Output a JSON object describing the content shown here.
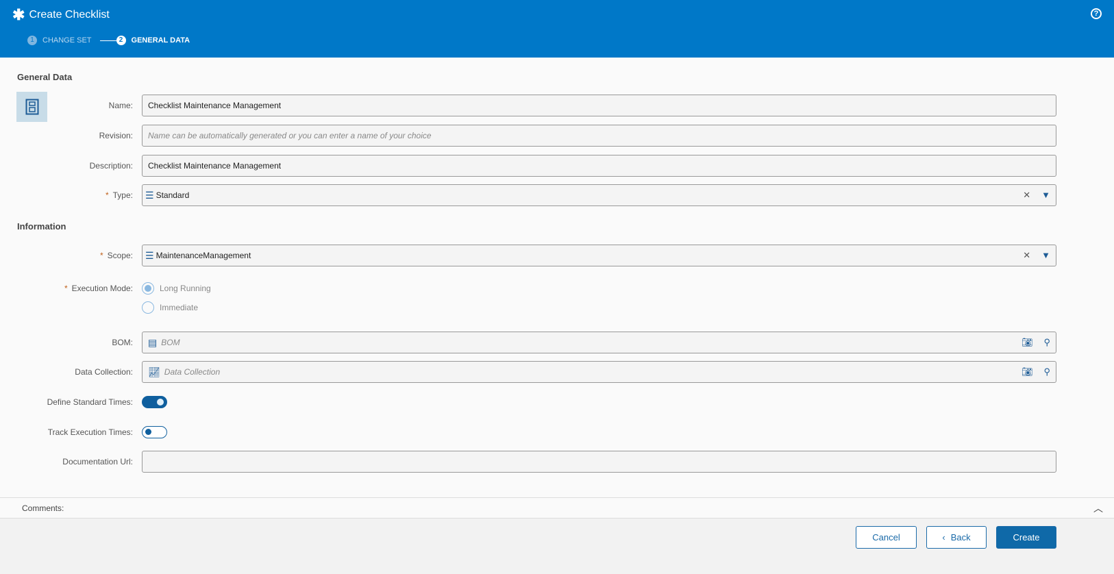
{
  "header": {
    "title": "Create Checklist",
    "logo_icon": "asterisk-icon",
    "help_icon": "help-icon",
    "steps": [
      {
        "num": "1",
        "label": "CHANGE SET"
      },
      {
        "num": "2",
        "label": "GENERAL DATA"
      }
    ]
  },
  "general": {
    "title": "General Data",
    "name": {
      "label": "Name:",
      "value": "Checklist Maintenance Management"
    },
    "revision": {
      "label": "Revision:",
      "placeholder": "Name can be automatically generated or you can enter a name of your choice"
    },
    "description": {
      "label": "Description:",
      "value": "Checklist Maintenance Management"
    },
    "type": {
      "label": "Type:",
      "value": "Standard"
    }
  },
  "information": {
    "title": "Information",
    "scope": {
      "label": "Scope:",
      "value": "MaintenanceManagement"
    },
    "execution_mode": {
      "label": "Execution Mode:",
      "options": [
        "Long Running",
        "Immediate"
      ],
      "selected": "Long Running"
    },
    "bom": {
      "label": "BOM:",
      "placeholder": "BOM"
    },
    "data_collection": {
      "label": "Data Collection:",
      "placeholder": "Data Collection"
    },
    "define_standard_times": {
      "label": "Define Standard Times:",
      "on": true
    },
    "track_execution_times": {
      "label": "Track Execution Times:",
      "on": false
    },
    "documentation_url": {
      "label": "Documentation Url:",
      "value": ""
    }
  },
  "comments": {
    "label": "Comments:"
  },
  "footer": {
    "cancel": "Cancel",
    "back": "Back",
    "create": "Create"
  },
  "required_mark": "*",
  "colors": {
    "header": "#0078c8",
    "primary_button": "#0f69a8"
  }
}
